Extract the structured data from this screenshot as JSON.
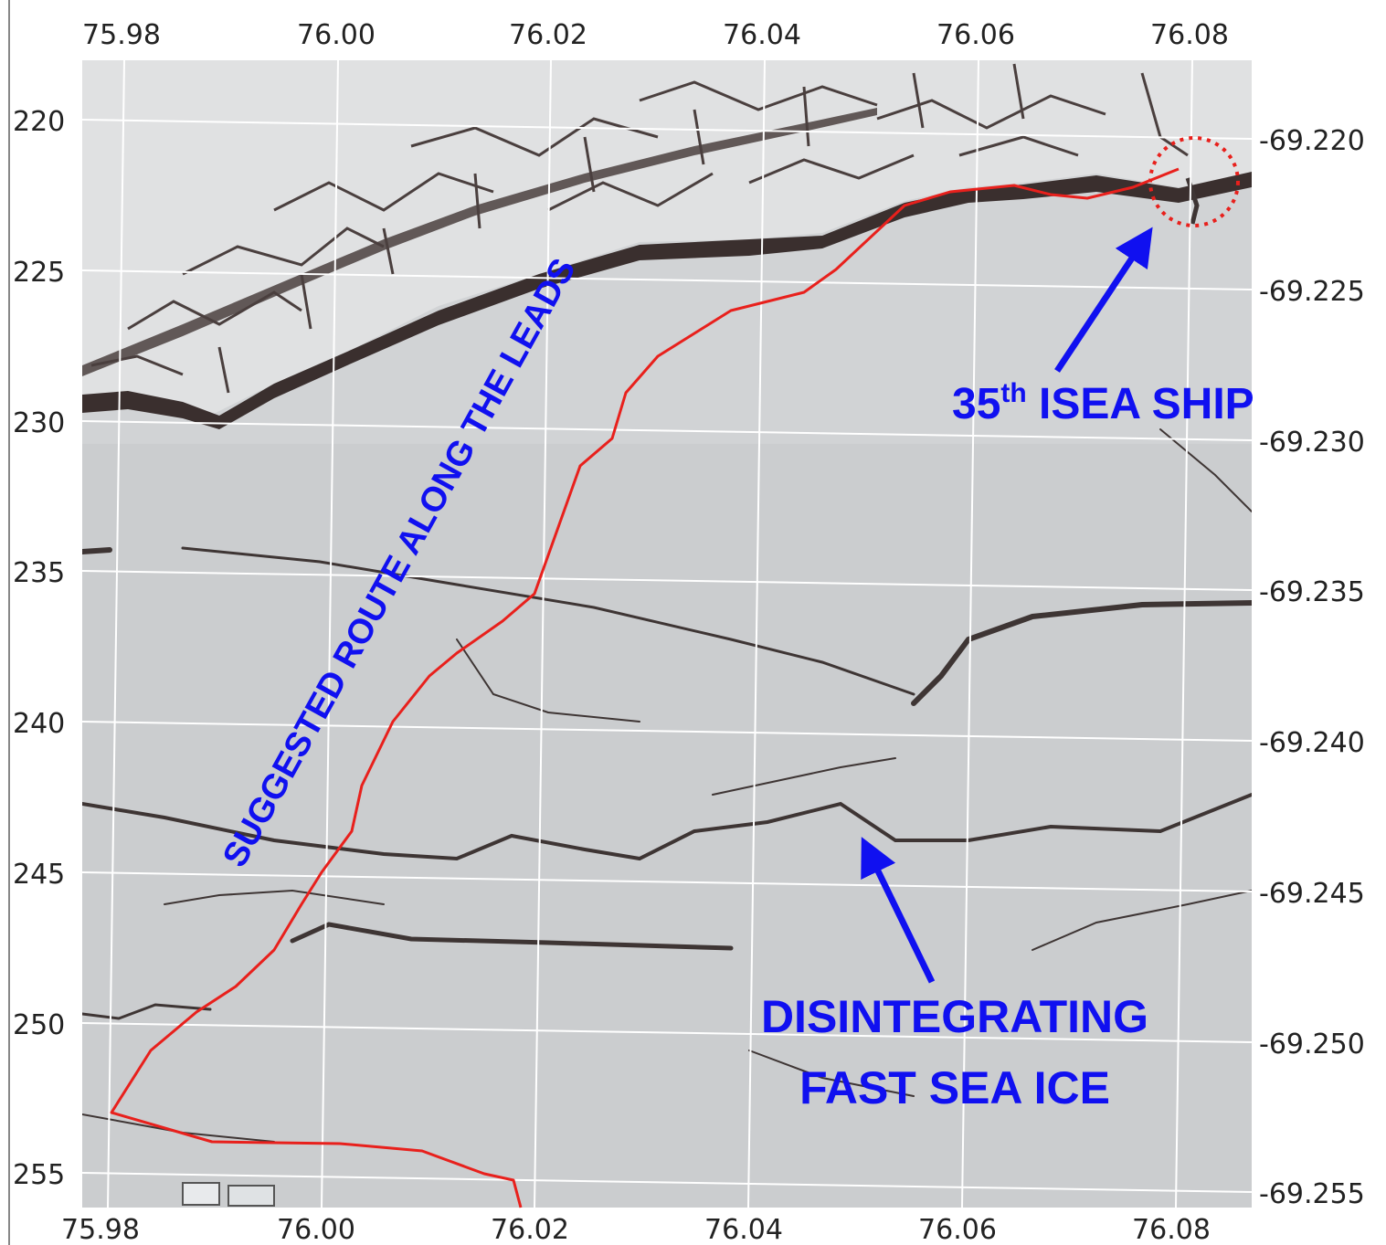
{
  "colors": {
    "ice": "#c9cbce",
    "ice_light": "#d6d8da",
    "lead_dark": "#3a2f2e",
    "grid": "#ffffff",
    "route": "#e8201c",
    "annotation": "#1010f0",
    "ship_circle": "#e8201c"
  },
  "axes": {
    "x_ticks_top": [
      "75.98",
      "76.00",
      "76.02",
      "76.04",
      "76.06",
      "76.08"
    ],
    "x_ticks_bottom": [
      "75.98",
      "76.00",
      "76.02",
      "76.04",
      "76.06",
      "76.08"
    ],
    "y_ticks_left": [
      "220",
      "225",
      "230",
      "235",
      "240",
      "245",
      "250",
      "255"
    ],
    "y_ticks_right": [
      "-69.220",
      "-69.225",
      "-69.230",
      "-69.235",
      "-69.240",
      "-69.245",
      "-69.250",
      "-69.255"
    ]
  },
  "labels": {
    "route": "SUGGESTED  ROUTE  ALONG THE LEADS",
    "ship_num": "35",
    "ship_sup": "th",
    "ship_rest": " ISEA SHIP",
    "ice_line1": "DISINTEGRATING",
    "ice_line2": "FAST SEA ICE"
  },
  "icons": {
    "ship_marker": "dotted-circle-icon",
    "ship_arrow": "arrow-icon",
    "ice_arrow": "arrow-icon"
  }
}
